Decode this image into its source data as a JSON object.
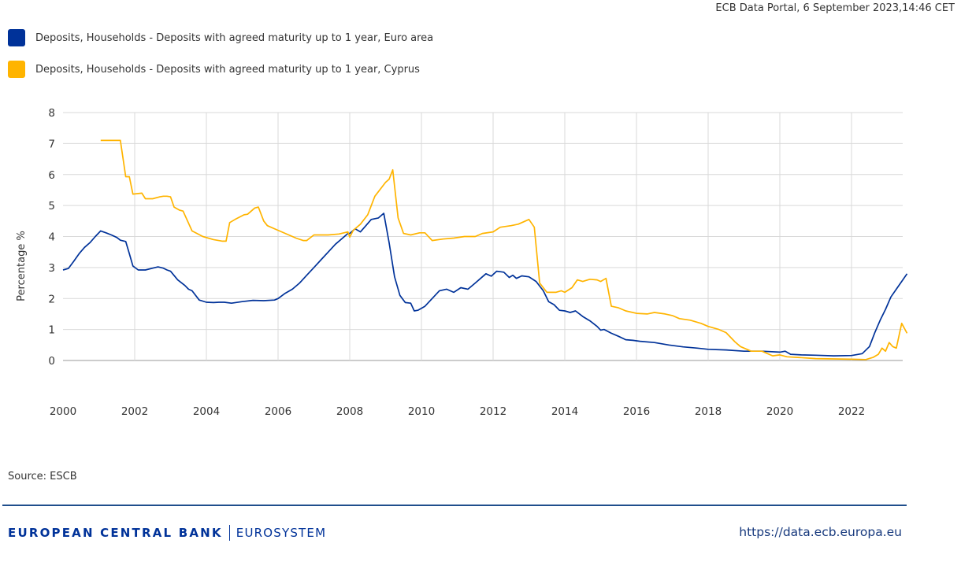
{
  "header": {
    "timestamp": "ECB Data Portal, 6 September 2023,14:46 CET"
  },
  "legend": [
    {
      "label": "Deposits, Households - Deposits with agreed maturity up to 1 year, Euro area",
      "color": "#003299"
    },
    {
      "label": "Deposits, Households - Deposits with agreed maturity up to 1 year, Cyprus",
      "color": "#ffb400"
    }
  ],
  "footer": {
    "source": "Source: ESCB",
    "brand_bold": "EUROPEAN CENTRAL BANK",
    "brand_light": "EUROSYSTEM",
    "url": "https://data.ecb.europa.eu"
  },
  "chart_data": {
    "type": "line",
    "title": "",
    "xlabel": "",
    "ylabel": "Percentage %",
    "xlim": [
      2000,
      2023.6
    ],
    "ylim": [
      0,
      8
    ],
    "grid": true,
    "legend_position": "top-left",
    "x_ticks": [
      "2000",
      "2002",
      "2004",
      "2006",
      "2008",
      "2010",
      "2012",
      "2014",
      "2016",
      "2018",
      "2020",
      "2022"
    ],
    "y_ticks": [
      "0",
      "1",
      "2",
      "3",
      "4",
      "5",
      "6",
      "7",
      "8"
    ],
    "series": [
      {
        "name": "Deposits, Households - Deposits with agreed maturity up to 1 year, Euro area",
        "color": "#003299",
        "x": [
          2000.0,
          2000.15,
          2000.3,
          2000.45,
          2000.6,
          2000.75,
          2000.9,
          2001.05,
          2001.2,
          2001.35,
          2001.5,
          2001.6,
          2001.75,
          2001.85,
          2001.95,
          2002.1,
          2002.3,
          2002.5,
          2002.65,
          2002.8,
          2002.9,
          2003.0,
          2003.2,
          2003.4,
          2003.5,
          2003.6,
          2003.8,
          2004.0,
          2004.2,
          2004.35,
          2004.5,
          2004.7,
          2005.0,
          2005.3,
          2005.6,
          2005.9,
          2006.0,
          2006.2,
          2006.4,
          2006.6,
          2006.8,
          2007.0,
          2007.2,
          2007.4,
          2007.6,
          2007.8,
          2007.95,
          2008.0,
          2008.15,
          2008.3,
          2008.45,
          2008.6,
          2008.8,
          2008.95,
          2009.1,
          2009.25,
          2009.4,
          2009.55,
          2009.7,
          2009.8,
          2009.9,
          2010.1,
          2010.3,
          2010.5,
          2010.7,
          2010.9,
          2011.1,
          2011.3,
          2011.5,
          2011.7,
          2011.8,
          2011.95,
          2012.1,
          2012.3,
          2012.45,
          2012.55,
          2012.65,
          2012.8,
          2013.0,
          2013.2,
          2013.4,
          2013.55,
          2013.7,
          2013.85,
          2014.0,
          2014.15,
          2014.3,
          2014.5,
          2014.7,
          2014.9,
          2015.0,
          2015.1,
          2015.3,
          2015.5,
          2015.7,
          2015.9,
          2016.1,
          2016.5,
          2016.9,
          2017.3,
          2017.7,
          2018.0,
          2018.5,
          2019.0,
          2019.5,
          2020.0,
          2020.15,
          2020.3,
          2020.6,
          2021.0,
          2021.5,
          2022.0,
          2022.3,
          2022.5,
          2022.65,
          2022.8,
          2022.95,
          2023.1,
          2023.25,
          2023.4,
          2023.55
        ],
        "values": [
          2.92,
          2.97,
          3.2,
          3.45,
          3.65,
          3.8,
          4.0,
          4.18,
          4.12,
          4.05,
          3.97,
          3.88,
          3.84,
          3.45,
          3.05,
          2.92,
          2.92,
          2.98,
          3.02,
          2.98,
          2.92,
          2.88,
          2.6,
          2.42,
          2.3,
          2.25,
          1.95,
          1.88,
          1.87,
          1.88,
          1.88,
          1.85,
          1.9,
          1.94,
          1.93,
          1.95,
          2.0,
          2.17,
          2.3,
          2.5,
          2.75,
          3.0,
          3.25,
          3.5,
          3.75,
          3.95,
          4.1,
          4.1,
          4.25,
          4.15,
          4.35,
          4.55,
          4.6,
          4.75,
          3.8,
          2.7,
          2.1,
          1.87,
          1.85,
          1.6,
          1.62,
          1.75,
          2.0,
          2.25,
          2.3,
          2.2,
          2.35,
          2.3,
          2.5,
          2.7,
          2.8,
          2.72,
          2.88,
          2.85,
          2.68,
          2.75,
          2.65,
          2.73,
          2.7,
          2.55,
          2.25,
          1.9,
          1.8,
          1.62,
          1.6,
          1.55,
          1.6,
          1.42,
          1.28,
          1.1,
          0.98,
          1.0,
          0.88,
          0.78,
          0.67,
          0.65,
          0.62,
          0.58,
          0.5,
          0.44,
          0.4,
          0.36,
          0.34,
          0.3,
          0.3,
          0.27,
          0.3,
          0.2,
          0.18,
          0.17,
          0.15,
          0.16,
          0.22,
          0.45,
          0.9,
          1.3,
          1.65,
          2.05,
          2.3,
          2.55,
          2.8
        ]
      },
      {
        "name": "Deposits, Households - Deposits with agreed maturity up to 1 year, Cyprus",
        "color": "#ffb400",
        "x": [
          2001.05,
          2001.3,
          2001.55,
          2001.6,
          2001.75,
          2001.85,
          2001.95,
          2002.2,
          2002.3,
          2002.5,
          2002.7,
          2002.8,
          2002.9,
          2003.0,
          2003.1,
          2003.25,
          2003.35,
          2003.6,
          2003.9,
          2004.2,
          2004.45,
          2004.55,
          2004.65,
          2004.8,
          2005.05,
          2005.15,
          2005.35,
          2005.45,
          2005.6,
          2005.7,
          2006.0,
          2006.3,
          2006.5,
          2006.7,
          2006.8,
          2007.0,
          2007.4,
          2007.7,
          2007.95,
          2008.0,
          2008.1,
          2008.3,
          2008.5,
          2008.7,
          2008.9,
          2009.0,
          2009.1,
          2009.2,
          2009.35,
          2009.5,
          2009.7,
          2009.95,
          2010.1,
          2010.3,
          2010.6,
          2010.9,
          2011.2,
          2011.5,
          2011.7,
          2012.0,
          2012.2,
          2012.5,
          2012.7,
          2012.9,
          2013.0,
          2013.15,
          2013.3,
          2013.5,
          2013.75,
          2013.9,
          2014.0,
          2014.2,
          2014.35,
          2014.5,
          2014.7,
          2014.9,
          2015.0,
          2015.15,
          2015.3,
          2015.5,
          2015.7,
          2016.0,
          2016.3,
          2016.5,
          2016.8,
          2017.0,
          2017.2,
          2017.5,
          2017.8,
          2018.0,
          2018.3,
          2018.5,
          2018.75,
          2018.9,
          2019.1,
          2019.2,
          2019.5,
          2019.8,
          2020.0,
          2020.2,
          2020.5,
          2021.0,
          2021.5,
          2022.0,
          2022.4,
          2022.6,
          2022.75,
          2022.85,
          2022.95,
          2023.05,
          2023.15,
          2023.25,
          2023.4,
          2023.55
        ],
        "values": [
          7.1,
          7.1,
          7.1,
          7.1,
          5.93,
          5.93,
          5.37,
          5.4,
          5.22,
          5.22,
          5.28,
          5.3,
          5.3,
          5.28,
          4.95,
          4.85,
          4.82,
          4.18,
          4.0,
          3.9,
          3.85,
          3.85,
          4.45,
          4.55,
          4.7,
          4.72,
          4.92,
          4.95,
          4.5,
          4.35,
          4.2,
          4.05,
          3.95,
          3.87,
          3.87,
          4.05,
          4.05,
          4.08,
          4.15,
          3.98,
          4.2,
          4.4,
          4.7,
          5.3,
          5.6,
          5.75,
          5.85,
          6.15,
          4.6,
          4.1,
          4.05,
          4.12,
          4.12,
          3.87,
          3.92,
          3.95,
          4.0,
          4.0,
          4.1,
          4.15,
          4.3,
          4.35,
          4.4,
          4.5,
          4.55,
          4.3,
          2.5,
          2.2,
          2.2,
          2.25,
          2.2,
          2.35,
          2.6,
          2.55,
          2.62,
          2.6,
          2.55,
          2.65,
          1.75,
          1.7,
          1.6,
          1.52,
          1.5,
          1.55,
          1.5,
          1.45,
          1.35,
          1.3,
          1.2,
          1.1,
          1.0,
          0.9,
          0.6,
          0.45,
          0.35,
          0.3,
          0.3,
          0.15,
          0.18,
          0.12,
          0.1,
          0.06,
          0.05,
          0.04,
          0.03,
          0.1,
          0.2,
          0.4,
          0.3,
          0.58,
          0.45,
          0.4,
          1.2,
          0.88
        ]
      }
    ]
  }
}
